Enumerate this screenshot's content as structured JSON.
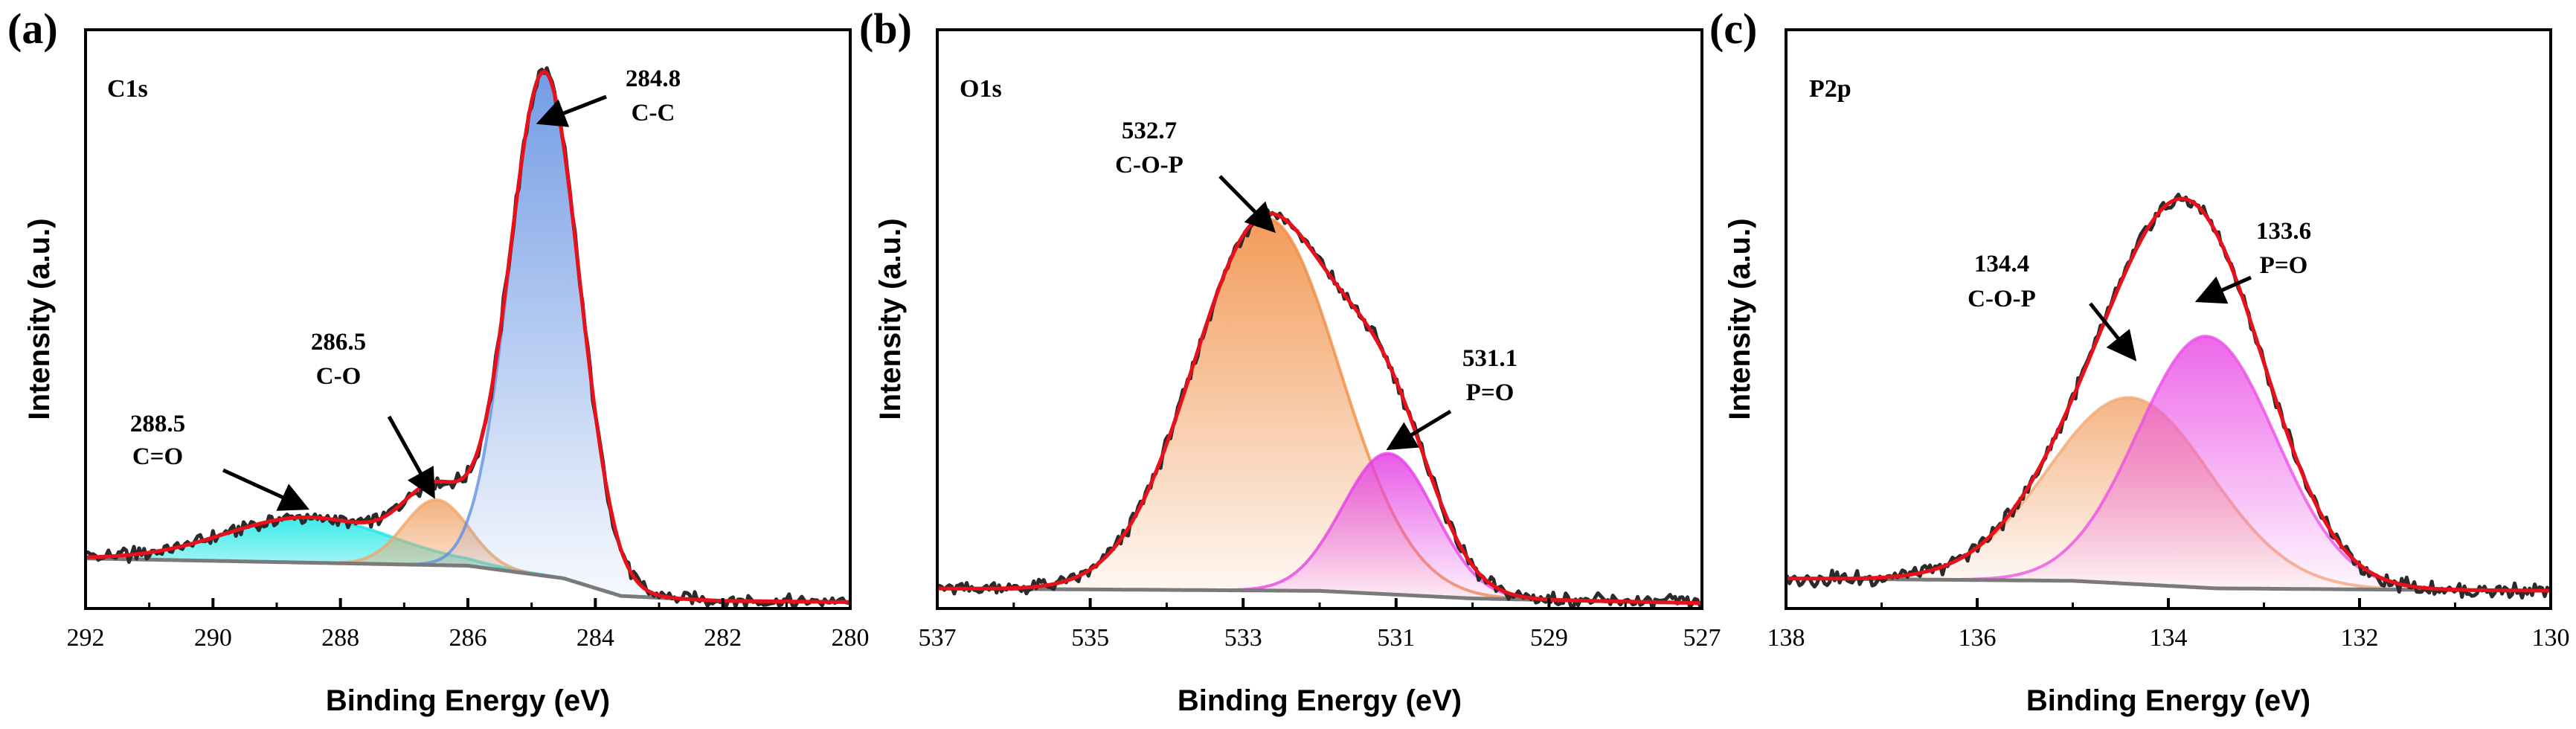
{
  "chart_data": [
    {
      "type": "line",
      "panel": "(a)",
      "title": "C1s",
      "xlabel": "Binding Energy (eV)",
      "ylabel": "Intensity (a.u.)",
      "xlim": [
        292,
        280
      ],
      "ylim": [
        0,
        1.15
      ],
      "x_ticks": [
        "292",
        "290",
        "288",
        "286",
        "284",
        "282",
        "280"
      ],
      "background": {
        "x": [
          292.2,
          286,
          284.5,
          283.6,
          282,
          279.4
        ],
        "y": [
          0.1,
          0.085,
          0.06,
          0.025,
          0.015,
          0.012
        ]
      },
      "peaks": [
        {
          "name": "C=O",
          "center": 288.5,
          "amplitude": 0.09,
          "sigma": 1.3,
          "color": "#18e6e6"
        },
        {
          "name": "C-O",
          "center": 286.5,
          "amplitude": 0.13,
          "sigma": 0.5,
          "color": "#f0a468"
        },
        {
          "name": "C-C",
          "center": 284.8,
          "amplitude": 1.0,
          "sigma": 0.55,
          "color": "#5a8be0"
        }
      ],
      "annotations": [
        {
          "value": "288.5",
          "label": "C=O"
        },
        {
          "value": "286.5",
          "label": "C-O"
        },
        {
          "value": "284.8",
          "label": "C-C"
        }
      ]
    },
    {
      "type": "line",
      "panel": "(b)",
      "title": "O1s",
      "xlabel": "Binding Energy (eV)",
      "ylabel": "Intensity (a.u.)",
      "xlim": [
        537,
        527
      ],
      "ylim": [
        0,
        1.15
      ],
      "x_ticks": [
        "537",
        "535",
        "533",
        "531",
        "529",
        "527"
      ],
      "background": {
        "x": [
          537.2,
          532,
          530,
          526.8
        ],
        "y": [
          0.04,
          0.035,
          0.02,
          0.01
        ]
      },
      "peaks": [
        {
          "name": "C-O-P",
          "center": 532.7,
          "amplitude": 0.74,
          "sigma": 0.95,
          "color": "#f08a3c"
        },
        {
          "name": "P=O",
          "center": 531.1,
          "amplitude": 0.28,
          "sigma": 0.6,
          "color": "#e43ce4"
        }
      ],
      "annotations": [
        {
          "value": "532.7",
          "label": "C-O-P"
        },
        {
          "value": "531.1",
          "label": "P=O"
        }
      ]
    },
    {
      "type": "line",
      "panel": "(c)",
      "title": "P2p",
      "xlabel": "Binding Energy (eV)",
      "ylabel": "Intensity (a.u.)",
      "xlim": [
        138,
        130
      ],
      "ylim": [
        0,
        1.15
      ],
      "x_ticks": [
        "138",
        "136",
        "134",
        "132",
        "130"
      ],
      "background": {
        "x": [
          138.2,
          135,
          133.5,
          129.8
        ],
        "y": [
          0.06,
          0.055,
          0.04,
          0.035
        ]
      },
      "peaks": [
        {
          "name": "C-O-P",
          "center": 134.4,
          "amplitude": 0.37,
          "sigma": 0.85,
          "color": "#f3a870"
        },
        {
          "name": "P=O",
          "center": 133.6,
          "amplitude": 0.5,
          "sigma": 0.72,
          "color": "#ea4ce6"
        }
      ],
      "annotations": [
        {
          "value": "134.4",
          "label": "C-O-P"
        },
        {
          "value": "133.6",
          "label": "P=O"
        }
      ]
    }
  ]
}
